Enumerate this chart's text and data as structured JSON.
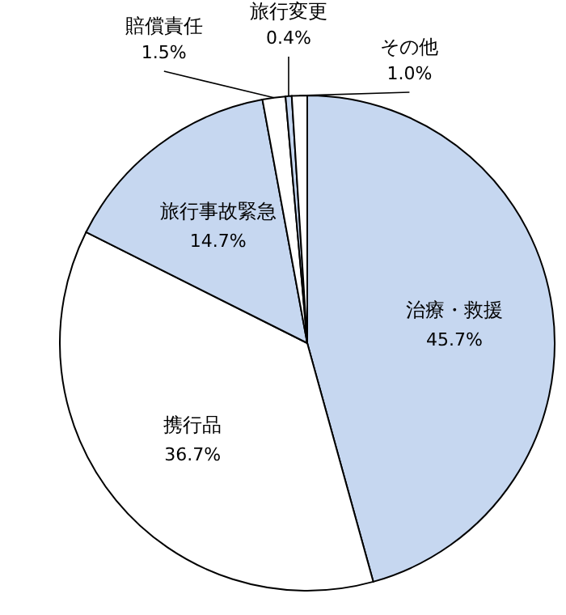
{
  "chart_data": {
    "type": "pie",
    "categories": [
      "治療・救援",
      "携行品",
      "旅行事故緊急",
      "賠償責任",
      "旅行変更",
      "その他"
    ],
    "values": [
      45.7,
      36.7,
      14.7,
      1.5,
      0.4,
      1.0
    ],
    "value_labels": [
      "45.7%",
      "36.7%",
      "14.7%",
      "1.5%",
      "0.4%",
      "1.0%"
    ],
    "colors": [
      "#c6d7f0",
      "#ffffff",
      "#c6d7f0",
      "#ffffff",
      "#c6d7f0",
      "#ffffff"
    ]
  }
}
